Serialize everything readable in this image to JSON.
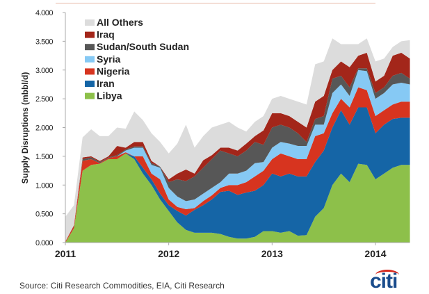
{
  "chart_data": {
    "type": "area",
    "stacked": true,
    "title": "",
    "ylabel": "Supply Disruptions (mbbl/d)",
    "xlabel": "",
    "ylim": [
      0,
      4
    ],
    "yticks": [
      "0.000",
      "0.500",
      "1.000",
      "1.500",
      "2.000",
      "2.500",
      "3.000",
      "3.500",
      "4.000"
    ],
    "xticks": [
      {
        "label": "2011",
        "month": 0
      },
      {
        "label": "2012",
        "month": 12
      },
      {
        "label": "2013",
        "month": 24
      },
      {
        "label": "2014",
        "month": 36
      }
    ],
    "x_start": "Jan 2011",
    "x_step": "month",
    "legend_position": "top-left",
    "series": [
      {
        "name": "Libya",
        "color": "#8dc04a",
        "values": [
          0,
          0.25,
          1.25,
          1.35,
          1.37,
          1.45,
          1.45,
          1.55,
          1.45,
          1.2,
          1.0,
          0.75,
          0.55,
          0.35,
          0.22,
          0.17,
          0.17,
          0.17,
          0.15,
          0.1,
          0.07,
          0.07,
          0.1,
          0.2,
          0.2,
          0.17,
          0.2,
          0.12,
          0.13,
          0.45,
          0.6,
          1.0,
          1.2,
          1.05,
          1.37,
          1.35,
          1.1,
          1.2,
          1.3,
          1.35,
          1.35
        ]
      },
      {
        "name": "Iran",
        "color": "#1565a6",
        "values": [
          0,
          0,
          0,
          0,
          0,
          0,
          0,
          0,
          0.05,
          0.1,
          0.1,
          0.1,
          0.1,
          0.2,
          0.25,
          0.4,
          0.48,
          0.58,
          0.73,
          0.8,
          0.76,
          0.8,
          0.8,
          0.8,
          1.0,
          0.98,
          1.0,
          1.03,
          1.02,
          0.95,
          1.0,
          1.0,
          1.1,
          1.0,
          0.98,
          1.0,
          0.8,
          0.85,
          0.85,
          0.82,
          0.82
        ]
      },
      {
        "name": "Nigeria",
        "color": "#d7341f",
        "values": [
          0.02,
          0.03,
          0.17,
          0.1,
          0.01,
          0.02,
          0.05,
          0.02,
          0,
          0.2,
          0.1,
          0.25,
          0.1,
          0.07,
          0.11,
          0.03,
          0.07,
          0.07,
          0.07,
          0.1,
          0.17,
          0.18,
          0.25,
          0.25,
          0.25,
          0.4,
          0.3,
          0.3,
          0.3,
          0.45,
          0.3,
          0.25,
          0.2,
          0.3,
          0.35,
          0.3,
          0.3,
          0.25,
          0.25,
          0.28,
          0.28
        ]
      },
      {
        "name": "Syria",
        "color": "#86c9f4",
        "values": [
          0,
          0,
          0,
          0,
          0,
          0,
          0,
          0.03,
          0.15,
          0.15,
          0.15,
          0.2,
          0.2,
          0.18,
          0.14,
          0.15,
          0.13,
          0.13,
          0.1,
          0.2,
          0.2,
          0.2,
          0.23,
          0.15,
          0.2,
          0.2,
          0.22,
          0.23,
          0.23,
          0.2,
          0.15,
          0.35,
          0.25,
          0.2,
          0.3,
          0.33,
          0.3,
          0.3,
          0.35,
          0.33,
          0.3
        ]
      },
      {
        "name": "Sudan/South Sudan",
        "color": "#575757",
        "values": [
          0,
          0,
          0.03,
          0.03,
          0.02,
          0.01,
          0.02,
          0.02,
          0.02,
          0.02,
          0.03,
          0.02,
          0.1,
          0.3,
          0.35,
          0.4,
          0.45,
          0.5,
          0.55,
          0.35,
          0.3,
          0.35,
          0.37,
          0.3,
          0.35,
          0.3,
          0.28,
          0.22,
          0.07,
          0.1,
          0.15,
          0.25,
          0.15,
          0.15,
          0.03,
          0.05,
          0.1,
          0.1,
          0.15,
          0.17,
          0.1
        ]
      },
      {
        "name": "Iraq",
        "color": "#a3261a",
        "values": [
          0,
          0.02,
          0.03,
          0.02,
          0.02,
          0.02,
          0.16,
          0.03,
          0.08,
          0.08,
          0.04,
          0,
          0.05,
          0.1,
          0.2,
          0.05,
          0.13,
          0.07,
          0.05,
          0.1,
          0.1,
          0.12,
          0.1,
          0.25,
          0.25,
          0.2,
          0.2,
          0.2,
          0.25,
          0.3,
          0.35,
          0.15,
          0.25,
          0.35,
          0.22,
          0.27,
          0.2,
          0.2,
          0.35,
          0.35,
          0.35
        ]
      },
      {
        "name": "All Others",
        "color": "#dcdcdc",
        "values": [
          0.43,
          0.35,
          0.35,
          0.47,
          0.43,
          0.35,
          0.32,
          0.33,
          0.53,
          0.38,
          0.48,
          0.43,
          0.45,
          0.52,
          0.78,
          0.45,
          0.42,
          0.48,
          0.4,
          0.45,
          0.4,
          0.21,
          0.25,
          0.25,
          0.25,
          0.3,
          0.3,
          0.35,
          0.4,
          0.65,
          0.6,
          0.55,
          0.3,
          0.4,
          0.2,
          0.25,
          0.35,
          0.3,
          0.15,
          0.2,
          0.32
        ]
      }
    ]
  },
  "source": "Source: Citi Research Commodities, EIA, Citi Research",
  "logo": "citi"
}
